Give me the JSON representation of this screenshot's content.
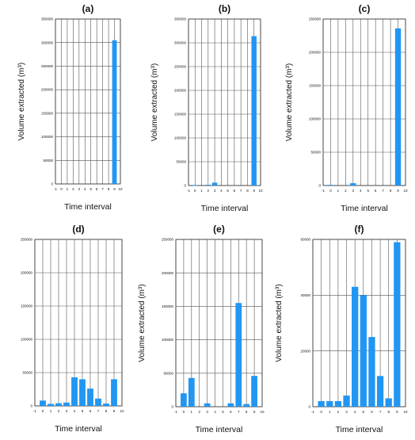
{
  "colors": {
    "bar": "#2196F3",
    "grid": "#555555",
    "axis": "#333333",
    "text": "#111111"
  },
  "chart_data": [
    {
      "panel": "(a)",
      "type": "bar",
      "xlabel": "Time interval",
      "ylabel": "Volume extracted (m³)",
      "xlim": [
        -1,
        10
      ],
      "xticks": [
        -1,
        0,
        1,
        2,
        3,
        4,
        5,
        6,
        7,
        8,
        9,
        10
      ],
      "ylim": [
        0,
        350000
      ],
      "yticks": [
        0,
        50000,
        100000,
        150000,
        200000,
        250000,
        300000,
        350000
      ],
      "grid": true,
      "categories": [
        0,
        1,
        2,
        3,
        4,
        5,
        6,
        7,
        8,
        9
      ],
      "values": [
        0,
        0,
        0,
        0,
        0,
        0,
        0,
        0,
        0,
        305000
      ]
    },
    {
      "panel": "(b)",
      "type": "bar",
      "xlabel": "Time interval",
      "ylabel": "Volume extracted (m³)",
      "xlim": [
        -1,
        10
      ],
      "xticks": [
        -1,
        0,
        1,
        2,
        3,
        4,
        5,
        6,
        7,
        8,
        9,
        10
      ],
      "ylim": [
        0,
        350000
      ],
      "yticks": [
        0,
        50000,
        100000,
        150000,
        200000,
        250000,
        300000,
        350000
      ],
      "grid": true,
      "categories": [
        0,
        1,
        2,
        3,
        4,
        5,
        6,
        7,
        8,
        9
      ],
      "values": [
        1000,
        0,
        1500,
        6000,
        0,
        0,
        0,
        0,
        0,
        314000
      ]
    },
    {
      "panel": "(c)",
      "type": "bar",
      "xlabel": "Time interval",
      "ylabel": "Volume extracted (m³)",
      "xlim": [
        -1,
        10
      ],
      "xticks": [
        -1,
        0,
        1,
        2,
        3,
        4,
        5,
        6,
        7,
        8,
        9,
        10
      ],
      "ylim": [
        0,
        250000
      ],
      "yticks": [
        0,
        50000,
        100000,
        150000,
        200000,
        250000
      ],
      "grid": true,
      "categories": [
        0,
        1,
        2,
        3,
        4,
        5,
        6,
        7,
        8,
        9
      ],
      "values": [
        1000,
        0,
        0,
        3500,
        0,
        0,
        0,
        0,
        0,
        236000
      ]
    },
    {
      "panel": "(d)",
      "type": "bar",
      "xlabel": "Time interval",
      "ylabel": "",
      "xlim": [
        -1,
        10
      ],
      "xticks": [
        -1,
        0,
        1,
        2,
        3,
        4,
        5,
        6,
        7,
        8,
        9,
        10
      ],
      "ylim": [
        0,
        250000
      ],
      "yticks": [
        0,
        50000,
        100000,
        150000,
        200000,
        250000
      ],
      "grid": true,
      "categories": [
        0,
        1,
        2,
        3,
        4,
        5,
        6,
        7,
        8,
        9
      ],
      "values": [
        8000,
        3000,
        4000,
        5000,
        43000,
        40000,
        26000,
        11000,
        3500,
        40000
      ]
    },
    {
      "panel": "(e)",
      "type": "bar",
      "xlabel": "Time interval",
      "ylabel": "Volume extracted (m³)",
      "xlim": [
        -1,
        10
      ],
      "xticks": [
        -1,
        0,
        1,
        2,
        3,
        4,
        5,
        6,
        7,
        8,
        9,
        10
      ],
      "ylim": [
        0,
        250000
      ],
      "yticks": [
        0,
        50000,
        100000,
        150000,
        200000,
        250000
      ],
      "grid": true,
      "categories": [
        0,
        1,
        2,
        3,
        4,
        5,
        6,
        7,
        8,
        9
      ],
      "values": [
        20000,
        43000,
        0,
        5000,
        0,
        0,
        5000,
        155000,
        4000,
        46000
      ]
    },
    {
      "panel": "(f)",
      "type": "bar",
      "xlabel": "Time interval",
      "ylabel": "Volume extracted (m³)",
      "xlim": [
        -1,
        10
      ],
      "xticks": [
        -1,
        0,
        1,
        2,
        3,
        4,
        5,
        6,
        7,
        8,
        9,
        10
      ],
      "ylim": [
        0,
        60000
      ],
      "yticks": [
        0,
        20000,
        40000,
        60000
      ],
      "grid": true,
      "categories": [
        0,
        1,
        2,
        3,
        4,
        5,
        6,
        7,
        8,
        9
      ],
      "values": [
        2000,
        2000,
        2000,
        4000,
        43000,
        40000,
        25000,
        11000,
        3000,
        59000
      ]
    }
  ]
}
